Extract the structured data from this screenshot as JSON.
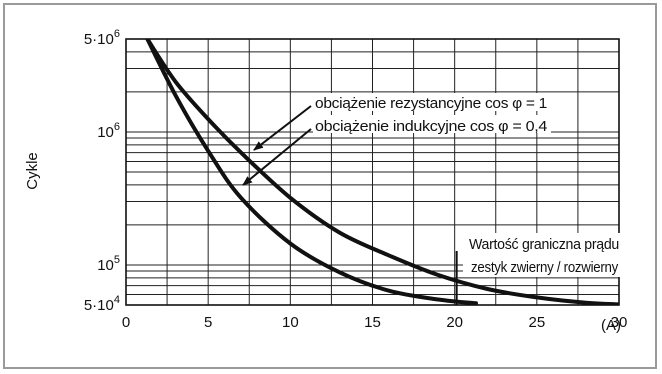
{
  "chart_data": {
    "type": "line",
    "ylabel": "Cykle",
    "xunit": "(A)",
    "yscale": "log",
    "xlim": [
      0,
      30
    ],
    "ylim": [
      50000,
      5000000
    ],
    "grid": true,
    "x_ticks": [
      0,
      5,
      10,
      15,
      20,
      25,
      30
    ],
    "x_tick_labels": [
      "0",
      "5",
      "10",
      "15",
      "20",
      "25",
      "30"
    ],
    "y_tick_labels": [
      {
        "value": 5000000,
        "base": "5·10",
        "exp": "6"
      },
      {
        "value": 1000000,
        "base": "10",
        "exp": "6"
      },
      {
        "value": 100000,
        "base": "10",
        "exp": "5"
      },
      {
        "value": 50000,
        "base": "5·10",
        "exp": "4"
      }
    ],
    "series": [
      {
        "name": "obciążenie rezystancyjne cos φ = 1",
        "x": [
          1.3,
          3,
          5,
          7,
          10,
          13,
          16,
          19,
          22,
          25,
          28,
          30
        ],
        "y": [
          5000000,
          2400000,
          1250000,
          700000,
          320000,
          175000,
          118000,
          84000,
          66000,
          57000,
          52000,
          50500
        ]
      },
      {
        "name": "obciążenie indukcyjne cos φ = 0,4",
        "x": [
          1.3,
          3,
          5,
          7,
          10,
          13,
          16,
          19,
          21.3
        ],
        "y": [
          5000000,
          1900000,
          720000,
          320000,
          145000,
          88000,
          64000,
          55000,
          51500
        ]
      }
    ],
    "annotations": {
      "resistive_label": "obciążenie rezystancyjne cos φ = 1",
      "inductive_label": "obciążenie indukcyjne cos φ = 0,4",
      "limit_line1": "Wartość graniczna prądu",
      "limit_line2": "zestyk zwierny / rozwierny",
      "limit_x": 20
    }
  }
}
